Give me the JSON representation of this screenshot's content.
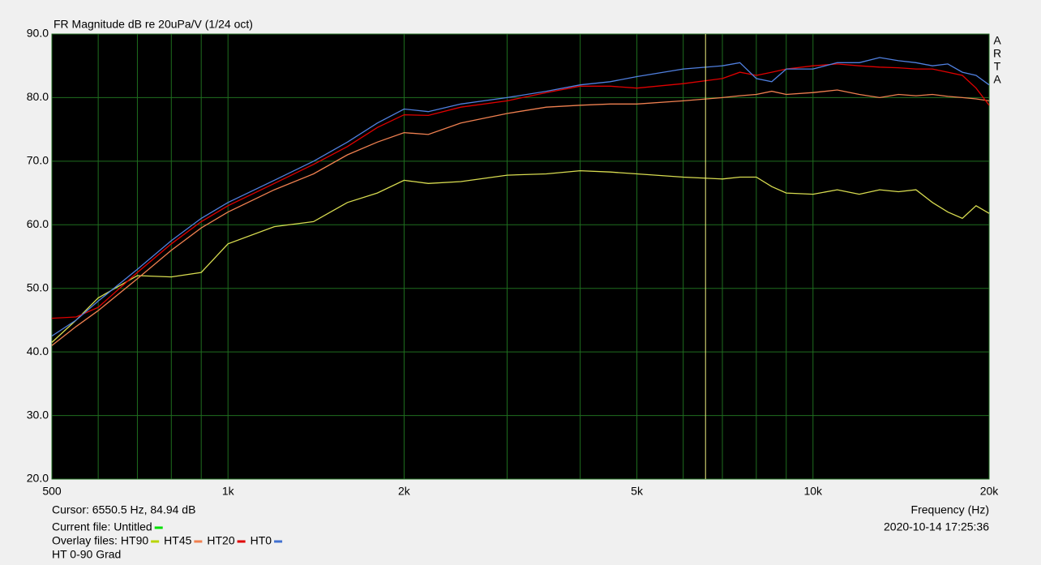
{
  "chart_data": {
    "type": "line",
    "title": "FR Magnitude dB re 20uPa/V (1/24 oct)",
    "x_label": "Frequency (Hz)",
    "watermark": "ARTA",
    "log_x": true,
    "grid": true,
    "x": [
      500,
      550,
      600,
      700,
      800,
      900,
      1000,
      1200,
      1400,
      1600,
      1800,
      2000,
      2200,
      2500,
      3000,
      3500,
      4000,
      4500,
      5000,
      6000,
      7000,
      7500,
      8000,
      8500,
      9000,
      10000,
      11000,
      12000,
      13000,
      14000,
      15000,
      16000,
      17000,
      18000,
      19000,
      20000
    ],
    "series": [
      {
        "name": "HT90",
        "color": "#d8dc50",
        "legend_color": "#b8d400",
        "values": [
          41.5,
          45,
          48.5,
          52,
          51.8,
          52.5,
          57,
          59.7,
          60.5,
          63.5,
          65,
          67,
          66.5,
          66.8,
          67.8,
          68,
          68.5,
          68.3,
          68,
          67.5,
          67.2,
          67.5,
          67.5,
          66,
          65,
          64.8,
          65.5,
          64.8,
          65.5,
          65.2,
          65.5,
          63.5,
          62,
          61,
          63,
          61.8
        ]
      },
      {
        "name": "HT45",
        "color": "#f08050",
        "legend_color": "#f08050",
        "values": [
          41,
          44,
          46.5,
          51.5,
          56,
          59.5,
          62,
          65.5,
          68,
          71,
          73,
          74.5,
          74.2,
          76,
          77.5,
          78.5,
          78.8,
          79,
          79,
          79.5,
          80,
          80.3,
          80.5,
          81,
          80.5,
          80.8,
          81.2,
          80.5,
          80,
          80.5,
          80.3,
          80.5,
          80.2,
          80,
          79.8,
          79.5
        ]
      },
      {
        "name": "HT20",
        "color": "#e00000",
        "legend_color": "#e00000",
        "values": [
          45.3,
          45.5,
          47,
          52.5,
          57,
          60.5,
          63,
          66.5,
          69.5,
          72.3,
          75.3,
          77.3,
          77.2,
          78.5,
          79.5,
          80.8,
          81.8,
          81.8,
          81.5,
          82.2,
          83,
          84,
          83.5,
          84,
          84.5,
          85,
          85.3,
          85,
          84.8,
          84.7,
          84.5,
          84.5,
          84,
          83.5,
          81.5,
          78.8
        ]
      },
      {
        "name": "HT0",
        "color": "#5080e0",
        "legend_color": "#4070d0",
        "values": [
          42.5,
          45,
          48,
          53,
          57.5,
          61,
          63.5,
          67,
          70,
          73,
          76,
          78.2,
          77.8,
          79,
          80,
          81,
          82,
          82.5,
          83.3,
          84.5,
          85,
          85.5,
          83,
          82.5,
          84.5,
          84.5,
          85.5,
          85.5,
          86.3,
          85.8,
          85.5,
          85,
          85.3,
          84,
          83.5,
          82
        ]
      }
    ],
    "xlim": [
      500,
      20000
    ],
    "xticks": [
      500,
      {
        "value": 1000,
        "label": "1k"
      },
      {
        "value": 2000,
        "label": "2k"
      },
      {
        "value": 5000,
        "label": "5k"
      },
      {
        "value": 10000,
        "label": "10k"
      },
      {
        "value": 20000,
        "label": "20k"
      }
    ],
    "x_minor_ticks": [
      600,
      700,
      800,
      900,
      3000,
      4000,
      6000,
      7000,
      8000,
      9000
    ],
    "ylim": [
      20,
      90
    ],
    "yticks": [
      {
        "value": 20,
        "label": "20.0"
      },
      {
        "value": 30,
        "label": "30.0"
      },
      {
        "value": 40,
        "label": "40.0"
      },
      {
        "value": 50,
        "label": "50.0"
      },
      {
        "value": 60,
        "label": "60.0"
      },
      {
        "value": 70,
        "label": "70.0"
      },
      {
        "value": 80,
        "label": "80.0"
      },
      {
        "value": 90,
        "label": "90.0"
      }
    ],
    "cursor_x": 6550.5,
    "cursor_text": "Cursor: 6550.5 Hz, 84.94 dB",
    "current_file": {
      "text": "Current file: Untitled",
      "color": "#00e000"
    },
    "overlay_label": "Overlay files:",
    "timestamp": "2020-10-14  17:25:36",
    "caption": "HT 0-90 Grad"
  }
}
